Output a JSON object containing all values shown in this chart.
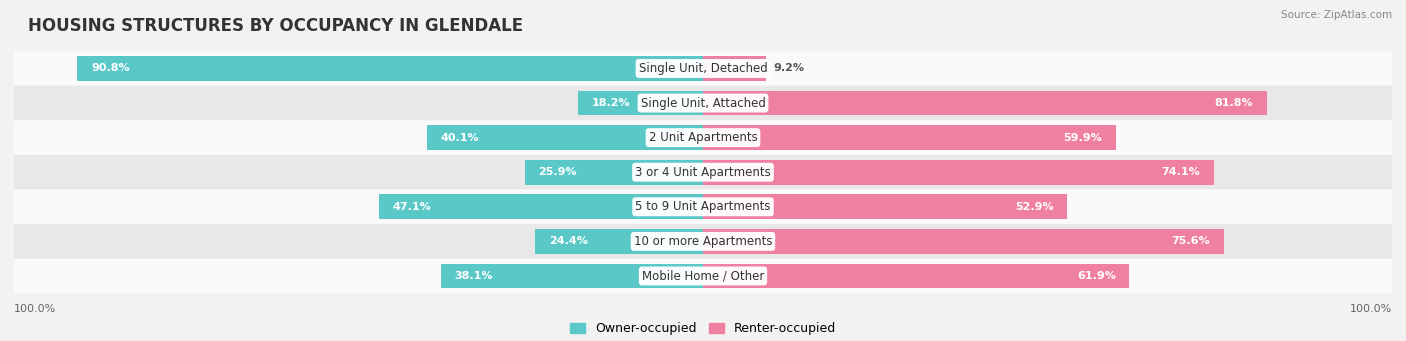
{
  "title": "HOUSING STRUCTURES BY OCCUPANCY IN GLENDALE",
  "source": "Source: ZipAtlas.com",
  "categories": [
    "Single Unit, Detached",
    "Single Unit, Attached",
    "2 Unit Apartments",
    "3 or 4 Unit Apartments",
    "5 to 9 Unit Apartments",
    "10 or more Apartments",
    "Mobile Home / Other"
  ],
  "owner_pct": [
    90.8,
    18.2,
    40.1,
    25.9,
    47.1,
    24.4,
    38.1
  ],
  "renter_pct": [
    9.2,
    81.8,
    59.9,
    74.1,
    52.9,
    75.6,
    61.9
  ],
  "owner_color": "#5bc8c8",
  "renter_color": "#f080a0",
  "bg_color": "#f2f2f2",
  "row_colors": [
    "#fafafa",
    "#e8e8e8"
  ],
  "title_fontsize": 12,
  "label_fontsize": 8.5,
  "value_fontsize": 8.0,
  "legend_fontsize": 9,
  "axis_label_fontsize": 8,
  "owner_label": "Owner-occupied",
  "renter_label": "Renter-occupied"
}
